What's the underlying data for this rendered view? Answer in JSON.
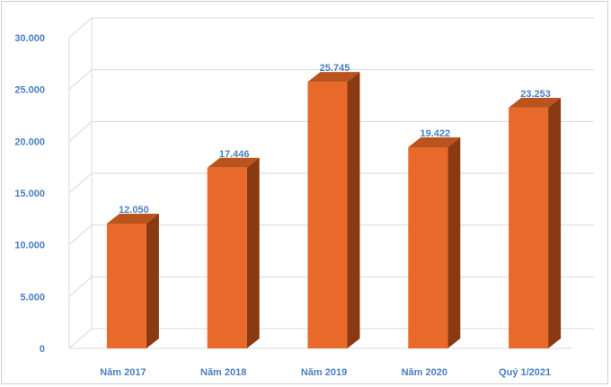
{
  "chart_data": {
    "type": "bar",
    "title": "",
    "xlabel": "",
    "ylabel": "",
    "categories": [
      "Năm 2017",
      "Năm 2018",
      "Năm 2019",
      "Năm 2020",
      "Quý 1/2021"
    ],
    "values": [
      12050,
      17446,
      25745,
      19422,
      23253
    ],
    "value_labels": [
      "12.050",
      "17.446",
      "25.745",
      "19.422",
      "23.253"
    ],
    "y_ticks": [
      0,
      5000,
      10000,
      15000,
      20000,
      25000,
      30000
    ],
    "y_tick_labels": [
      "0",
      "5.000",
      "10.000",
      "15.000",
      "20.000",
      "25.000",
      "30.000"
    ],
    "ylim": [
      0,
      30000
    ],
    "grid": true,
    "legend": "none",
    "style": "3d-column",
    "colors": {
      "bar_front": "#e8692a",
      "bar_side": "#8a3a12",
      "bar_top": "#b9541f",
      "label": "#4a7fc0",
      "grid": "#d9d9d9"
    }
  }
}
